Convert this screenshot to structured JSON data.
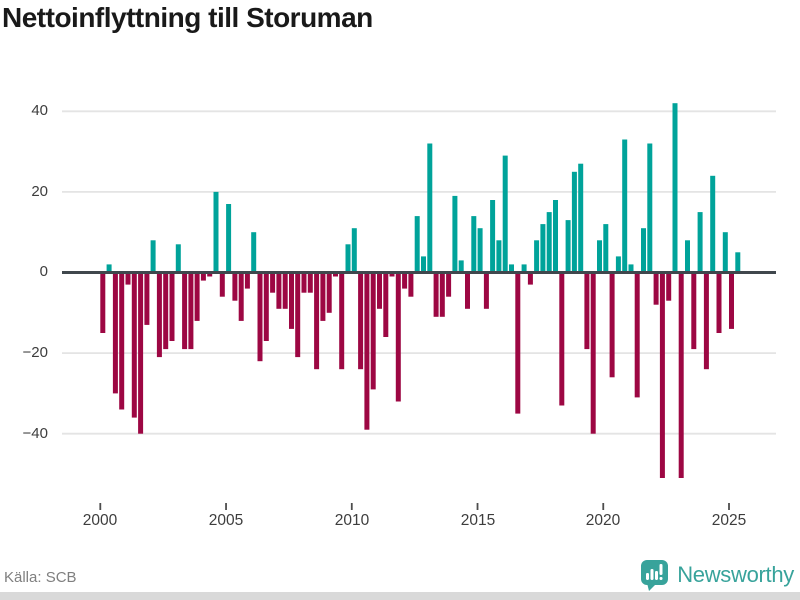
{
  "title": "Nettoinflyttning till Storuman",
  "footer": {
    "source": "Källa: SCB",
    "brand": "Newsworthy"
  },
  "colors": {
    "positive_bar": "#00a39a",
    "negative_bar": "#9d0743",
    "zero_line": "#40474d",
    "gridline": "#e4e4e4",
    "brand_teal": "#38a39b"
  },
  "chart_data": {
    "type": "bar",
    "title": "Nettoinflyttning till Storuman",
    "xlabel": "",
    "ylabel": "",
    "period": "quarterly",
    "x_start": "2000-Q1",
    "x_end": "2025-Q2",
    "x_tick_labels": [
      "2000",
      "2005",
      "2010",
      "2015",
      "2020",
      "2025"
    ],
    "y_ticks": [
      40,
      20,
      0,
      -20,
      -40
    ],
    "y_tick_labels": [
      "40",
      "20",
      "0",
      "−20",
      "−40"
    ],
    "ylim": [
      -52,
      44
    ],
    "grid": true,
    "legend": "none",
    "series": [
      {
        "name": "Nettoinflyttning",
        "values": [
          -15,
          2,
          -30,
          -34,
          -3,
          -36,
          -40,
          -13,
          8,
          -21,
          -19,
          -17,
          7,
          -19,
          -19,
          -12,
          -2,
          -1,
          20,
          -6,
          17,
          -7,
          -12,
          -4,
          10,
          -22,
          -17,
          -5,
          -9,
          -9,
          -14,
          -21,
          -5,
          -5,
          -24,
          -12,
          -10,
          -1,
          -24,
          7,
          11,
          -24,
          -39,
          -29,
          -9,
          -16,
          -1,
          -32,
          -4,
          -6,
          14,
          4,
          32,
          -11,
          -11,
          -6,
          19,
          3,
          -9,
          14,
          11,
          -9,
          18,
          8,
          29,
          2,
          -35,
          2,
          -3,
          8,
          12,
          15,
          18,
          -33,
          13,
          25,
          27,
          -19,
          -40,
          8,
          12,
          -26,
          4,
          33,
          2,
          -31,
          11,
          32,
          -8,
          -51,
          -7,
          42,
          -51,
          8,
          -19,
          15,
          -24,
          24,
          -15,
          10,
          -14,
          5
        ]
      }
    ]
  }
}
